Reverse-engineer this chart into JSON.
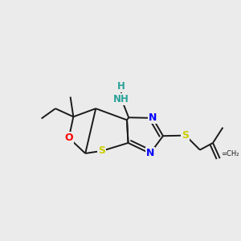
{
  "background_color": "#ebebeb",
  "atom_colors": {
    "S_thio": "#cccc00",
    "S_ether": "#cccc00",
    "N": "#0000ff",
    "O": "#ff0000",
    "C": "#1a1a1a",
    "NH": "#2aa198",
    "H": "#2aa198"
  },
  "bond_color": "#1a1a1a",
  "bond_width": 1.4,
  "figsize": [
    3.0,
    3.0
  ],
  "dpi": 100,
  "xlim": [
    0.05,
    0.95
  ],
  "ylim": [
    0.18,
    0.82
  ]
}
